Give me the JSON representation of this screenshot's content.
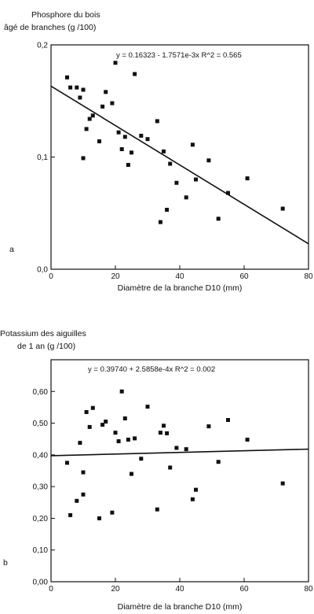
{
  "chart_data": [
    {
      "type": "scatter",
      "panel_label": "a",
      "title_lines": [
        "Phosphore du bois",
        "âgé de branches (g /100)"
      ],
      "xlabel": "Diamètre de la branche D10 (mm)",
      "equation": "y = 0.16323 - 1.7571e-3x   R^2 = 0.565",
      "xlim": [
        0,
        80
      ],
      "ylim": [
        0,
        0.2
      ],
      "x_ticks": [
        "0",
        "20",
        "40",
        "60",
        "80"
      ],
      "y_ticks": [
        "0,0",
        "0,1",
        "0,2"
      ],
      "regression": {
        "intercept": 0.16323,
        "slope": -0.0017571
      },
      "points": [
        [
          5,
          0.171
        ],
        [
          6,
          0.162
        ],
        [
          8,
          0.162
        ],
        [
          9,
          0.153
        ],
        [
          10,
          0.16
        ],
        [
          10,
          0.099
        ],
        [
          11,
          0.125
        ],
        [
          12,
          0.134
        ],
        [
          13,
          0.137
        ],
        [
          15,
          0.114
        ],
        [
          16,
          0.145
        ],
        [
          17,
          0.158
        ],
        [
          19,
          0.148
        ],
        [
          20,
          0.184
        ],
        [
          21,
          0.122
        ],
        [
          22,
          0.107
        ],
        [
          23,
          0.118
        ],
        [
          24,
          0.093
        ],
        [
          25,
          0.104
        ],
        [
          26,
          0.174
        ],
        [
          28,
          0.119
        ],
        [
          30,
          0.116
        ],
        [
          33,
          0.132
        ],
        [
          34,
          0.042
        ],
        [
          35,
          0.105
        ],
        [
          36,
          0.053
        ],
        [
          37,
          0.094
        ],
        [
          39,
          0.077
        ],
        [
          42,
          0.064
        ],
        [
          44,
          0.111
        ],
        [
          45,
          0.08
        ],
        [
          49,
          0.097
        ],
        [
          52,
          0.045
        ],
        [
          55,
          0.068
        ],
        [
          61,
          0.081
        ],
        [
          72,
          0.054
        ]
      ]
    },
    {
      "type": "scatter",
      "panel_label": "b",
      "title_lines": [
        "Potassium des aiguilles",
        "de 1 an (g /100)"
      ],
      "xlabel": "Diamètre de la branche D10 (mm)",
      "equation": "y = 0.39740 + 2.5858e-4x   R^2 = 0.002",
      "xlim": [
        0,
        80
      ],
      "ylim": [
        0,
        0.7
      ],
      "x_ticks": [
        "0",
        "20",
        "40",
        "60",
        "80"
      ],
      "y_ticks": [
        "0,00",
        "0,10",
        "0,20",
        "0,30",
        "0,40",
        "0,50",
        "0,60"
      ],
      "regression": {
        "intercept": 0.3974,
        "slope": 0.00025858
      },
      "points": [
        [
          5,
          0.375
        ],
        [
          6,
          0.21
        ],
        [
          8,
          0.255
        ],
        [
          9,
          0.438
        ],
        [
          10,
          0.345
        ],
        [
          10,
          0.275
        ],
        [
          11,
          0.535
        ],
        [
          12,
          0.488
        ],
        [
          13,
          0.548
        ],
        [
          15,
          0.2
        ],
        [
          16,
          0.495
        ],
        [
          17,
          0.505
        ],
        [
          19,
          0.218
        ],
        [
          20,
          0.47
        ],
        [
          21,
          0.443
        ],
        [
          22,
          0.6
        ],
        [
          23,
          0.515
        ],
        [
          24,
          0.448
        ],
        [
          25,
          0.34
        ],
        [
          26,
          0.452
        ],
        [
          28,
          0.388
        ],
        [
          30,
          0.552
        ],
        [
          33,
          0.228
        ],
        [
          34,
          0.47
        ],
        [
          35,
          0.492
        ],
        [
          36,
          0.468
        ],
        [
          37,
          0.36
        ],
        [
          39,
          0.422
        ],
        [
          42,
          0.418
        ],
        [
          44,
          0.26
        ],
        [
          45,
          0.29
        ],
        [
          49,
          0.49
        ],
        [
          52,
          0.378
        ],
        [
          55,
          0.51
        ],
        [
          61,
          0.448
        ],
        [
          72,
          0.31
        ]
      ]
    }
  ]
}
